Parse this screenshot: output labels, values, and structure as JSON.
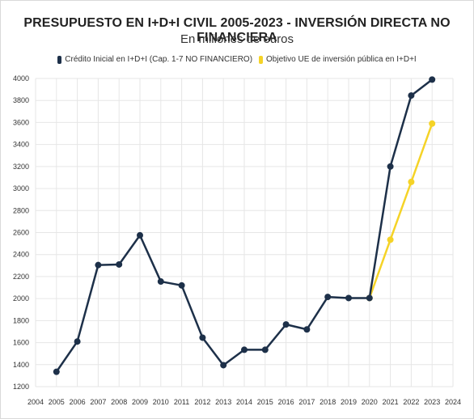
{
  "chart_data": {
    "type": "line",
    "title": "PRESUPUESTO EN I+D+I CIVIL 2005-2023 - INVERSIÓN DIRECTA NO FINANCIERA",
    "subtitle": "En millones de euros",
    "xlabel": "",
    "ylabel": "",
    "xlim": [
      2004,
      2024
    ],
    "ylim": [
      1200,
      4000
    ],
    "x_ticks": [
      2004,
      2005,
      2006,
      2007,
      2008,
      2009,
      2010,
      2011,
      2012,
      2013,
      2014,
      2015,
      2016,
      2017,
      2018,
      2019,
      2020,
      2021,
      2022,
      2023,
      2024
    ],
    "y_ticks": [
      1200,
      1400,
      1600,
      1800,
      2000,
      2200,
      2400,
      2600,
      2800,
      3000,
      3200,
      3400,
      3600,
      3800,
      4000
    ],
    "grid": true,
    "legend_position": "top",
    "series": [
      {
        "name": "Crédito Inicial en I+D+I (Cap. 1-7 NO FINANCIERO)",
        "color": "#1d3049",
        "x": [
          2005,
          2006,
          2007,
          2008,
          2009,
          2010,
          2011,
          2012,
          2013,
          2014,
          2015,
          2016,
          2017,
          2018,
          2019,
          2020,
          2021,
          2022,
          2023
        ],
        "values": [
          1335,
          1610,
          2305,
          2310,
          2575,
          2155,
          2120,
          1645,
          1395,
          1535,
          1535,
          1765,
          1720,
          2015,
          2005,
          2005,
          3200,
          3845,
          3990
        ]
      },
      {
        "name": "Objetivo UE de inversión pública en I+D+I",
        "color": "#f5d327",
        "x": [
          2020,
          2021,
          2022,
          2023
        ],
        "values": [
          2005,
          2535,
          3060,
          3590
        ]
      }
    ]
  }
}
